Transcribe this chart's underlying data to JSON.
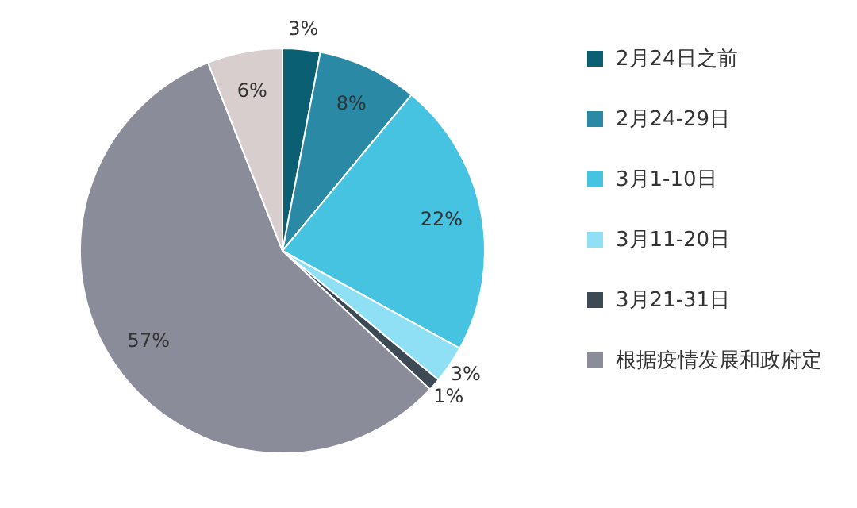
{
  "chart_data": {
    "type": "pie",
    "categories": [
      "2月24日之前",
      "2月24-29日",
      "3月1-10日",
      "3月11-20日",
      "3月21-31日",
      "根据疫情发展和政府定",
      null
    ],
    "values": [
      3,
      8,
      22,
      3,
      1,
      57,
      6
    ],
    "value_labels": [
      "3%",
      "8%",
      "22%",
      "3%",
      "1%",
      "57%",
      "6%"
    ],
    "colors": [
      "#0b5f73",
      "#2a8aa6",
      "#45c3e0",
      "#8fe0f5",
      "#3d4a55",
      "#8a8c9a",
      "#d8cece"
    ],
    "legend": "right"
  }
}
